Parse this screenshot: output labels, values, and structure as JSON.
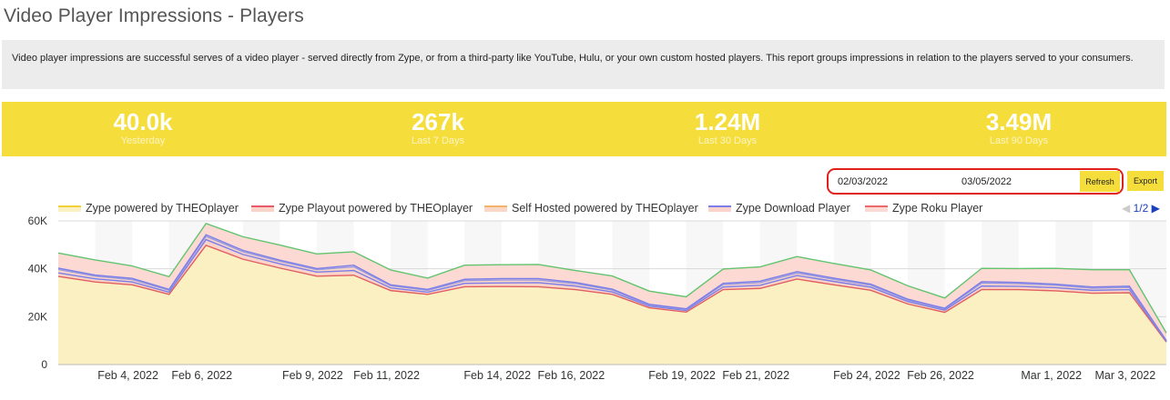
{
  "page": {
    "title": "Video Player Impressions - Players",
    "description": "Video player impressions are successful serves of a video player - served directly from Zype, or from a third-party like YouTube, Hulu, or your own custom hosted players. This report groups impressions in relation to the players served to your consumers."
  },
  "stats": [
    {
      "value": "40.0k",
      "label": "Yesterday"
    },
    {
      "value": "267k",
      "label": "Last 7 Days"
    },
    {
      "value": "1.24M",
      "label": "Last 30 Days"
    },
    {
      "value": "3.49M",
      "label": "Last 90 Days"
    }
  ],
  "controls": {
    "start_date": "02/03/2022",
    "end_date": "03/05/2022",
    "refresh_label": "Refresh",
    "export_label": "Export"
  },
  "legend_pager": {
    "prev": "◀",
    "page": "1/2",
    "next": "▶"
  },
  "colors": {
    "accent": "#f5de3c",
    "highlight": "#e0211a"
  },
  "chart_data": {
    "type": "area",
    "stacked": true,
    "ylim": [
      0,
      60000
    ],
    "yticks": [
      0,
      20000,
      40000,
      60000
    ],
    "ytick_labels": [
      "0",
      "20K",
      "40K",
      "60K"
    ],
    "x": [
      "2022-02-03",
      "2022-02-04",
      "2022-02-05",
      "2022-02-06",
      "2022-02-07",
      "2022-02-08",
      "2022-02-09",
      "2022-02-10",
      "2022-02-11",
      "2022-02-12",
      "2022-02-13",
      "2022-02-14",
      "2022-02-15",
      "2022-02-16",
      "2022-02-17",
      "2022-02-18",
      "2022-02-19",
      "2022-02-20",
      "2022-02-21",
      "2022-02-22",
      "2022-02-23",
      "2022-02-24",
      "2022-02-25",
      "2022-02-26",
      "2022-02-27",
      "2022-02-28",
      "2022-03-01",
      "2022-03-02",
      "2022-03-03",
      "2022-03-04",
      "2022-03-05"
    ],
    "xtick_labels": [
      {
        "x": "2022-02-04",
        "label": "Feb 4, 2022"
      },
      {
        "x": "2022-02-06",
        "label": "Feb 6, 2022"
      },
      {
        "x": "2022-02-09",
        "label": "Feb 9, 2022"
      },
      {
        "x": "2022-02-11",
        "label": "Feb 11, 2022"
      },
      {
        "x": "2022-02-14",
        "label": "Feb 14, 2022"
      },
      {
        "x": "2022-02-16",
        "label": "Feb 16, 2022"
      },
      {
        "x": "2022-02-19",
        "label": "Feb 19, 2022"
      },
      {
        "x": "2022-02-21",
        "label": "Feb 21, 2022"
      },
      {
        "x": "2022-02-24",
        "label": "Feb 24, 2022"
      },
      {
        "x": "2022-02-26",
        "label": "Feb 26, 2022"
      },
      {
        "x": "2022-03-01",
        "label": "Mar 1, 2022"
      },
      {
        "x": "2022-03-03",
        "label": "Mar 3, 2022"
      }
    ],
    "series": [
      {
        "name": "Zype powered by THEOplayer",
        "color": "#f2d23a",
        "fill": "#fbf0c2",
        "stroke": "#e06060",
        "values": [
          36800,
          34500,
          33300,
          29300,
          49800,
          44000,
          40300,
          36900,
          37300,
          30900,
          29300,
          32500,
          32600,
          32500,
          31300,
          29300,
          23700,
          21900,
          31300,
          31800,
          35700,
          33300,
          31000,
          25300,
          21800,
          31300,
          31300,
          30800,
          29800,
          30000,
          9400
        ]
      },
      {
        "name": "Zype Playout powered by THEOplayer",
        "color": "#e85a6a",
        "fill": "#fbd3c9",
        "stroke": "#7b7ee8",
        "values": [
          1500,
          1300,
          1200,
          900,
          2400,
          2000,
          1800,
          1700,
          2000,
          1100,
          900,
          1400,
          1500,
          1700,
          1500,
          1000,
          700,
          700,
          1100,
          1300,
          1500,
          1400,
          1300,
          1000,
          900,
          1500,
          1400,
          1300,
          1200,
          1300,
          300
        ]
      },
      {
        "name": "Self Hosted powered by THEOplayer",
        "color": "#f2b46a",
        "fill": "#fbd7c8",
        "stroke": "#9b9be0",
        "values": [
          1400,
          1100,
          1000,
          800,
          1300,
          1100,
          1000,
          1000,
          1500,
          900,
          800,
          1100,
          1200,
          1100,
          1000,
          800,
          500,
          400,
          1000,
          1100,
          1000,
          900,
          800,
          600,
          500,
          1200,
          1100,
          1000,
          900,
          900,
          200
        ]
      },
      {
        "name": "Zype Download Player",
        "color": "#7b7ee8",
        "fill": "#fbd3cc",
        "stroke": "#7b7ee8",
        "values": [
          600,
          500,
          500,
          400,
          700,
          600,
          500,
          500,
          700,
          400,
          400,
          600,
          600,
          600,
          500,
          400,
          300,
          300,
          500,
          600,
          600,
          500,
          500,
          400,
          300,
          600,
          500,
          500,
          500,
          500,
          100
        ]
      },
      {
        "name": "Zype Roku Player",
        "color": "#ee6a6a",
        "fill": "#fcd9d2",
        "stroke": "#62c46f",
        "values": [
          6300,
          6300,
          5200,
          5300,
          4700,
          5700,
          6300,
          6100,
          5600,
          6200,
          4700,
          5900,
          5800,
          5900,
          5000,
          5500,
          5500,
          5000,
          6000,
          6000,
          6300,
          6100,
          5900,
          5600,
          4300,
          5600,
          5800,
          6600,
          7200,
          6900,
          3200
        ]
      }
    ]
  }
}
